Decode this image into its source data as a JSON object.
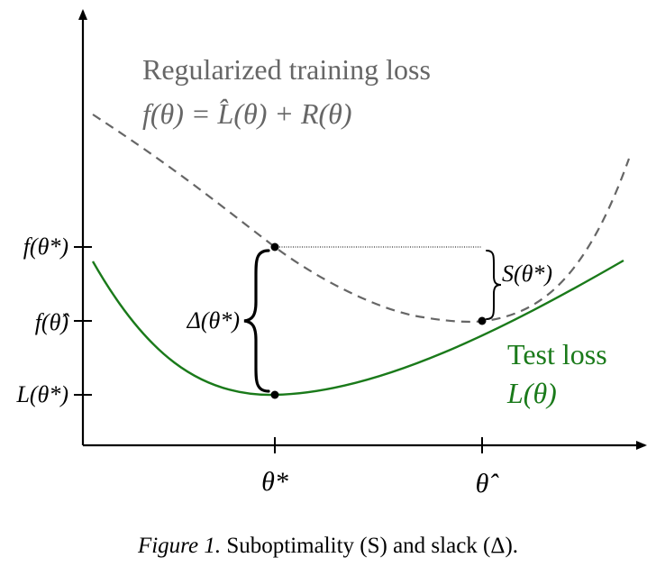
{
  "curves": {
    "regularized": {
      "title": "Regularized training loss",
      "formula": "f(θ) = L̂(θ) + R(θ)",
      "color": "#666666"
    },
    "test": {
      "title": "Test loss",
      "formula": "L(θ)",
      "color": "#1a7a1a"
    }
  },
  "y_ticks": [
    "f(θ*)",
    "f(θ̂)",
    "L(θ*)"
  ],
  "x_ticks": [
    "θ*",
    "θ̂"
  ],
  "annotations": {
    "slack": "Δ(θ*)",
    "suboptimality": "S(θ*)"
  },
  "caption": {
    "prefix": "Figure 1.",
    "text": "Suboptimality (S) and slack (Δ)."
  }
}
